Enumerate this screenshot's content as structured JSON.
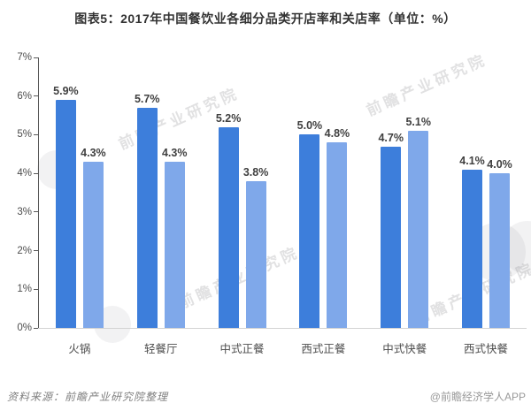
{
  "title": "图表5：2017年中国餐饮业各细分品类开店率和关店率（单位：%）",
  "chart_data": {
    "type": "bar",
    "title": "图表5：2017年中国餐饮业各细分品类开店率和关店率（单位：%）",
    "categories": [
      "火锅",
      "轻餐厅",
      "中式正餐",
      "西式正餐",
      "中式快餐",
      "西式快餐"
    ],
    "series": [
      {
        "name": "开店率",
        "color": "#3D7EDB",
        "values": [
          5.9,
          5.7,
          5.2,
          5.0,
          4.7,
          4.1
        ]
      },
      {
        "name": "关店率",
        "color": "#7FA8EA",
        "values": [
          4.3,
          4.3,
          3.8,
          4.8,
          5.1,
          4.0
        ]
      }
    ],
    "xlabel": "",
    "ylabel": "",
    "ylim": [
      0,
      7
    ],
    "yticks": [
      "0%",
      "1%",
      "2%",
      "3%",
      "4%",
      "5%",
      "6%",
      "7%"
    ],
    "grid": false,
    "legend_position": "none",
    "value_label_suffix": "%"
  },
  "footer": {
    "source": "资料来源：前瞻产业研究院整理",
    "credit": "@前瞻经济学人APP"
  },
  "watermark": {
    "text": "前瞻产业研究院"
  }
}
